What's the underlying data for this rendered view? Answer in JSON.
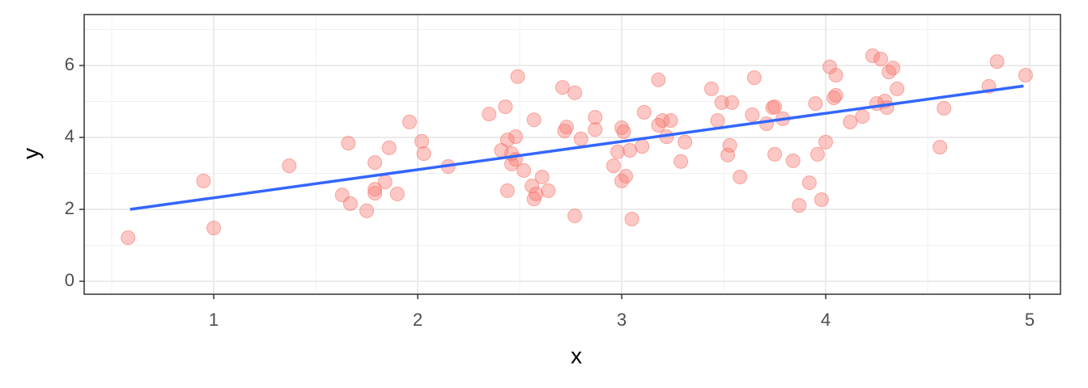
{
  "chart_data": {
    "type": "scatter",
    "x_label": "x",
    "y_label": "y",
    "xlim": [
      0.365,
      5.151
    ],
    "ylim": [
      -0.36,
      7.416
    ],
    "xticks": [
      1,
      2,
      3,
      4,
      5
    ],
    "yticks": [
      0,
      2,
      4,
      6
    ],
    "grid": true,
    "series": [
      {
        "color": "#f8766d",
        "x": [
          0.58,
          0.95,
          1.0,
          1.37,
          1.63,
          1.66,
          1.67,
          1.75,
          1.79,
          1.79,
          1.79,
          1.84,
          1.86,
          1.9,
          1.96,
          2.02,
          2.03,
          2.15,
          2.35,
          2.41,
          2.43,
          2.44,
          2.44,
          2.46,
          2.46,
          2.48,
          2.48,
          2.49,
          2.52,
          2.57,
          2.56,
          2.58,
          2.57,
          2.61,
          2.64,
          2.71,
          2.72,
          2.73,
          2.77,
          2.77,
          2.8,
          2.87,
          2.87,
          2.96,
          2.98,
          3.0,
          3.0,
          3.01,
          3.02,
          3.04,
          3.05,
          3.1,
          3.11,
          3.18,
          3.18,
          3.2,
          3.22,
          3.24,
          3.29,
          3.31,
          3.44,
          3.47,
          3.49,
          3.52,
          3.53,
          3.54,
          3.58,
          3.64,
          3.65,
          3.71,
          3.74,
          3.75,
          3.75,
          3.79,
          3.84,
          3.87,
          3.92,
          3.95,
          3.96,
          3.98,
          4.0,
          4.02,
          4.04,
          4.05,
          4.05,
          4.12,
          4.18,
          4.23,
          4.25,
          4.27,
          4.29,
          4.3,
          4.31,
          4.33,
          4.35,
          4.56,
          4.58,
          4.8,
          4.84,
          4.98
        ],
        "values": [
          1.21,
          2.79,
          1.48,
          3.21,
          2.4,
          3.84,
          2.16,
          1.96,
          3.3,
          2.56,
          2.45,
          2.76,
          3.71,
          2.43,
          4.43,
          3.89,
          3.55,
          3.19,
          4.65,
          3.64,
          4.85,
          3.93,
          2.52,
          3.55,
          3.26,
          3.39,
          4.02,
          5.69,
          3.08,
          4.49,
          2.65,
          2.43,
          2.29,
          2.9,
          2.52,
          5.39,
          4.18,
          4.29,
          1.82,
          5.24,
          3.96,
          4.56,
          4.22,
          3.21,
          3.6,
          4.27,
          2.79,
          4.16,
          2.92,
          3.64,
          1.73,
          3.75,
          4.7,
          5.6,
          4.34,
          4.47,
          4.02,
          4.47,
          3.33,
          3.87,
          5.35,
          4.47,
          4.97,
          3.51,
          3.78,
          4.97,
          2.9,
          4.63,
          5.66,
          4.38,
          4.83,
          4.85,
          3.53,
          4.52,
          3.35,
          2.11,
          2.74,
          4.94,
          3.53,
          2.27,
          3.87,
          5.96,
          5.1,
          5.17,
          5.73,
          4.43,
          4.58,
          6.27,
          4.94,
          6.18,
          5.01,
          4.83,
          5.82,
          5.93,
          5.35,
          3.73,
          4.81,
          5.42,
          6.11,
          5.73
        ]
      }
    ],
    "trend": {
      "color": "#3366ff",
      "x": [
        0.59,
        4.97
      ],
      "values": [
        2.0,
        5.43
      ]
    }
  }
}
